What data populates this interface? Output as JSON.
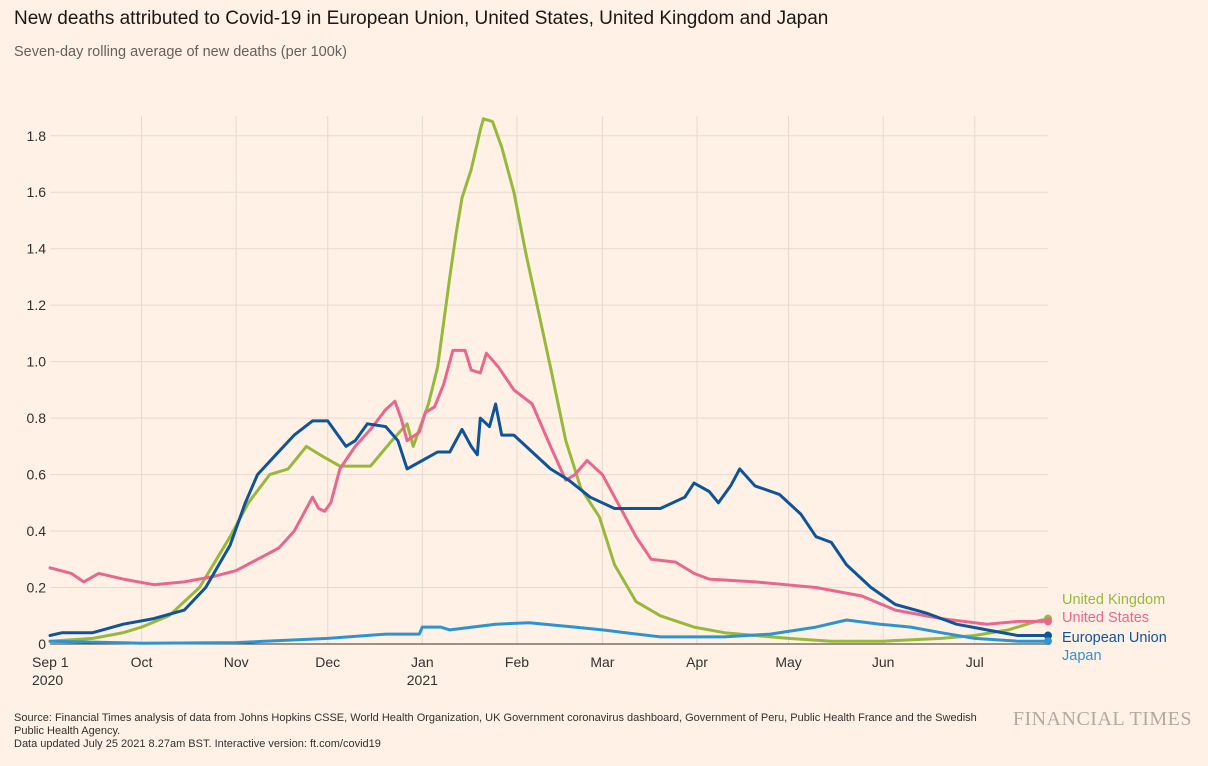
{
  "header": {
    "title": "New deaths attributed to Covid-19 in European Union, United States, United Kingdom and Japan",
    "subtitle": "Seven-day rolling average of new deaths (per 100k)"
  },
  "footer": {
    "source": "Source: Financial Times analysis of data from Johns Hopkins CSSE, World Health Organization, UK Government coronavirus dashboard, Government of Peru, Public Health France and the Swedish Public Health Agency.",
    "updated": "Data updated July 25 2021 8.27am BST. Interactive version: ft.com/covid19",
    "brand": "FINANCIAL TIMES"
  },
  "chart_data": {
    "type": "line",
    "x_range": [
      "2020-09-01",
      "2021-07-25"
    ],
    "ylim": [
      0,
      1.87
    ],
    "yticks": [
      0,
      0.2,
      0.4,
      0.6,
      0.8,
      1.0,
      1.2,
      1.4,
      1.6,
      1.8
    ],
    "ytick_labels": [
      "0",
      "0.2",
      "0.4",
      "0.6",
      "0.8",
      "1.0",
      "1.2",
      "1.4",
      "1.6",
      "1.8"
    ],
    "xticks": [
      {
        "date": "2020-09-01",
        "label": "Sep 1",
        "year": "2020"
      },
      {
        "date": "2020-10-01",
        "label": "Oct"
      },
      {
        "date": "2020-11-01",
        "label": "Nov"
      },
      {
        "date": "2020-12-01",
        "label": "Dec"
      },
      {
        "date": "2021-01-01",
        "label": "Jan",
        "year": "2021"
      },
      {
        "date": "2021-02-01",
        "label": "Feb"
      },
      {
        "date": "2021-03-01",
        "label": "Mar"
      },
      {
        "date": "2021-04-01",
        "label": "Apr"
      },
      {
        "date": "2021-05-01",
        "label": "May"
      },
      {
        "date": "2021-06-01",
        "label": "Jun"
      },
      {
        "date": "2021-07-01",
        "label": "Jul"
      }
    ],
    "grid": true,
    "series": [
      {
        "name": "United Kingdom",
        "color": "#96b93b",
        "points": [
          [
            "2020-09-01",
            0.01
          ],
          [
            "2020-09-15",
            0.02
          ],
          [
            "2020-09-25",
            0.04
          ],
          [
            "2020-10-01",
            0.06
          ],
          [
            "2020-10-10",
            0.1
          ],
          [
            "2020-10-20",
            0.2
          ],
          [
            "2020-10-30",
            0.38
          ],
          [
            "2020-11-05",
            0.5
          ],
          [
            "2020-11-12",
            0.6
          ],
          [
            "2020-11-18",
            0.62
          ],
          [
            "2020-11-24",
            0.7
          ],
          [
            "2020-11-30",
            0.66
          ],
          [
            "2020-12-05",
            0.63
          ],
          [
            "2020-12-15",
            0.63
          ],
          [
            "2020-12-22",
            0.72
          ],
          [
            "2020-12-27",
            0.78
          ],
          [
            "2020-12-29",
            0.7
          ],
          [
            "2021-01-03",
            0.85
          ],
          [
            "2021-01-06",
            0.98
          ],
          [
            "2021-01-10",
            1.3
          ],
          [
            "2021-01-12",
            1.45
          ],
          [
            "2021-01-14",
            1.58
          ],
          [
            "2021-01-17",
            1.68
          ],
          [
            "2021-01-20",
            1.82
          ],
          [
            "2021-01-21",
            1.86
          ],
          [
            "2021-01-24",
            1.85
          ],
          [
            "2021-01-27",
            1.76
          ],
          [
            "2021-01-31",
            1.6
          ],
          [
            "2021-02-04",
            1.38
          ],
          [
            "2021-02-08",
            1.18
          ],
          [
            "2021-02-12",
            0.98
          ],
          [
            "2021-02-17",
            0.72
          ],
          [
            "2021-02-22",
            0.55
          ],
          [
            "2021-02-28",
            0.45
          ],
          [
            "2021-03-05",
            0.28
          ],
          [
            "2021-03-12",
            0.15
          ],
          [
            "2021-03-20",
            0.1
          ],
          [
            "2021-03-31",
            0.06
          ],
          [
            "2021-04-10",
            0.04
          ],
          [
            "2021-04-20",
            0.03
          ],
          [
            "2021-05-01",
            0.02
          ],
          [
            "2021-05-15",
            0.01
          ],
          [
            "2021-06-01",
            0.01
          ],
          [
            "2021-06-20",
            0.02
          ],
          [
            "2021-07-01",
            0.03
          ],
          [
            "2021-07-12",
            0.05
          ],
          [
            "2021-07-21",
            0.08
          ],
          [
            "2021-07-25",
            0.09
          ]
        ]
      },
      {
        "name": "United States",
        "color": "#e9678e",
        "points": [
          [
            "2020-09-01",
            0.27
          ],
          [
            "2020-09-08",
            0.25
          ],
          [
            "2020-09-12",
            0.22
          ],
          [
            "2020-09-17",
            0.25
          ],
          [
            "2020-09-25",
            0.23
          ],
          [
            "2020-10-05",
            0.21
          ],
          [
            "2020-10-15",
            0.22
          ],
          [
            "2020-10-25",
            0.24
          ],
          [
            "2020-11-01",
            0.26
          ],
          [
            "2020-11-08",
            0.3
          ],
          [
            "2020-11-15",
            0.34
          ],
          [
            "2020-11-20",
            0.4
          ],
          [
            "2020-11-26",
            0.52
          ],
          [
            "2020-11-28",
            0.48
          ],
          [
            "2020-11-30",
            0.47
          ],
          [
            "2020-12-02",
            0.5
          ],
          [
            "2020-12-05",
            0.62
          ],
          [
            "2020-12-10",
            0.7
          ],
          [
            "2020-12-15",
            0.76
          ],
          [
            "2020-12-20",
            0.83
          ],
          [
            "2020-12-23",
            0.86
          ],
          [
            "2020-12-25",
            0.8
          ],
          [
            "2020-12-27",
            0.72
          ],
          [
            "2020-12-31",
            0.75
          ],
          [
            "2021-01-02",
            0.82
          ],
          [
            "2021-01-05",
            0.84
          ],
          [
            "2021-01-08",
            0.92
          ],
          [
            "2021-01-11",
            1.04
          ],
          [
            "2021-01-15",
            1.04
          ],
          [
            "2021-01-17",
            0.97
          ],
          [
            "2021-01-20",
            0.96
          ],
          [
            "2021-01-22",
            1.03
          ],
          [
            "2021-01-26",
            0.98
          ],
          [
            "2021-01-31",
            0.9
          ],
          [
            "2021-02-06",
            0.85
          ],
          [
            "2021-02-12",
            0.7
          ],
          [
            "2021-02-17",
            0.58
          ],
          [
            "2021-02-20",
            0.6
          ],
          [
            "2021-02-24",
            0.65
          ],
          [
            "2021-03-01",
            0.6
          ],
          [
            "2021-03-06",
            0.5
          ],
          [
            "2021-03-12",
            0.38
          ],
          [
            "2021-03-17",
            0.3
          ],
          [
            "2021-03-25",
            0.29
          ],
          [
            "2021-03-31",
            0.25
          ],
          [
            "2021-04-05",
            0.23
          ],
          [
            "2021-04-20",
            0.22
          ],
          [
            "2021-05-10",
            0.2
          ],
          [
            "2021-05-25",
            0.17
          ],
          [
            "2021-06-05",
            0.12
          ],
          [
            "2021-06-20",
            0.09
          ],
          [
            "2021-07-05",
            0.07
          ],
          [
            "2021-07-15",
            0.08
          ],
          [
            "2021-07-25",
            0.08
          ]
        ]
      },
      {
        "name": "European Union",
        "color": "#0f5499",
        "points": [
          [
            "2020-09-01",
            0.03
          ],
          [
            "2020-09-05",
            0.04
          ],
          [
            "2020-09-15",
            0.04
          ],
          [
            "2020-09-25",
            0.07
          ],
          [
            "2020-10-05",
            0.09
          ],
          [
            "2020-10-15",
            0.12
          ],
          [
            "2020-10-22",
            0.2
          ],
          [
            "2020-10-30",
            0.35
          ],
          [
            "2020-11-04",
            0.5
          ],
          [
            "2020-11-08",
            0.6
          ],
          [
            "2020-11-14",
            0.67
          ],
          [
            "2020-11-20",
            0.74
          ],
          [
            "2020-11-26",
            0.79
          ],
          [
            "2020-12-01",
            0.79
          ],
          [
            "2020-12-07",
            0.7
          ],
          [
            "2020-12-10",
            0.72
          ],
          [
            "2020-12-14",
            0.78
          ],
          [
            "2020-12-20",
            0.77
          ],
          [
            "2020-12-24",
            0.72
          ],
          [
            "2020-12-27",
            0.62
          ],
          [
            "2021-01-01",
            0.65
          ],
          [
            "2021-01-06",
            0.68
          ],
          [
            "2021-01-10",
            0.68
          ],
          [
            "2021-01-14",
            0.76
          ],
          [
            "2021-01-17",
            0.7
          ],
          [
            "2021-01-19",
            0.67
          ],
          [
            "2021-01-20",
            0.8
          ],
          [
            "2021-01-23",
            0.77
          ],
          [
            "2021-01-25",
            0.85
          ],
          [
            "2021-01-27",
            0.74
          ],
          [
            "2021-01-31",
            0.74
          ],
          [
            "2021-02-06",
            0.68
          ],
          [
            "2021-02-12",
            0.62
          ],
          [
            "2021-02-18",
            0.58
          ],
          [
            "2021-02-25",
            0.52
          ],
          [
            "2021-03-05",
            0.48
          ],
          [
            "2021-03-12",
            0.48
          ],
          [
            "2021-03-20",
            0.48
          ],
          [
            "2021-03-28",
            0.52
          ],
          [
            "2021-03-31",
            0.57
          ],
          [
            "2021-04-05",
            0.54
          ],
          [
            "2021-04-08",
            0.5
          ],
          [
            "2021-04-12",
            0.56
          ],
          [
            "2021-04-15",
            0.62
          ],
          [
            "2021-04-20",
            0.56
          ],
          [
            "2021-04-28",
            0.53
          ],
          [
            "2021-05-05",
            0.46
          ],
          [
            "2021-05-10",
            0.38
          ],
          [
            "2021-05-15",
            0.36
          ],
          [
            "2021-05-20",
            0.28
          ],
          [
            "2021-05-28",
            0.2
          ],
          [
            "2021-06-05",
            0.14
          ],
          [
            "2021-06-15",
            0.11
          ],
          [
            "2021-06-25",
            0.07
          ],
          [
            "2021-07-05",
            0.05
          ],
          [
            "2021-07-15",
            0.03
          ],
          [
            "2021-07-25",
            0.03
          ]
        ]
      },
      {
        "name": "Japan",
        "color": "#2e94d1",
        "points": [
          [
            "2020-09-01",
            0.01
          ],
          [
            "2020-10-01",
            0.003
          ],
          [
            "2020-11-01",
            0.005
          ],
          [
            "2020-12-01",
            0.02
          ],
          [
            "2020-12-20",
            0.035
          ],
          [
            "2020-12-31",
            0.035
          ],
          [
            "2021-01-01",
            0.06
          ],
          [
            "2021-01-07",
            0.06
          ],
          [
            "2021-01-10",
            0.05
          ],
          [
            "2021-01-25",
            0.07
          ],
          [
            "2021-02-05",
            0.075
          ],
          [
            "2021-02-20",
            0.06
          ],
          [
            "2021-03-01",
            0.05
          ],
          [
            "2021-03-20",
            0.025
          ],
          [
            "2021-04-10",
            0.025
          ],
          [
            "2021-04-25",
            0.035
          ],
          [
            "2021-05-10",
            0.06
          ],
          [
            "2021-05-20",
            0.085
          ],
          [
            "2021-05-31",
            0.07
          ],
          [
            "2021-06-10",
            0.06
          ],
          [
            "2021-06-20",
            0.04
          ],
          [
            "2021-07-01",
            0.02
          ],
          [
            "2021-07-15",
            0.01
          ],
          [
            "2021-07-25",
            0.01
          ]
        ]
      }
    ]
  }
}
